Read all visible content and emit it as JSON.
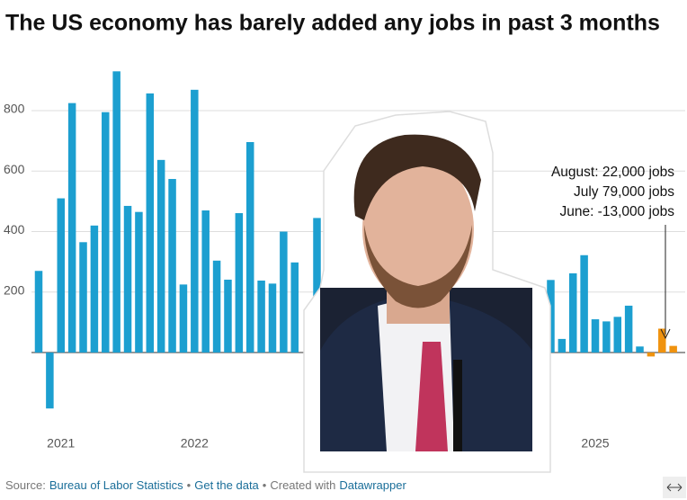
{
  "chart_data": {
    "type": "bar",
    "title": "The US economy has barely added any jobs in past 3 months",
    "categories": [
      null,
      null,
      "2021",
      null,
      null,
      null,
      null,
      null,
      null,
      null,
      null,
      null,
      null,
      null,
      "2022",
      null,
      null,
      null,
      null,
      null,
      null,
      null,
      null,
      null,
      null,
      null,
      null,
      null,
      null,
      null,
      null,
      null,
      null,
      null,
      null,
      null,
      null,
      null,
      null,
      null,
      null,
      null,
      null,
      null,
      null,
      null,
      null,
      null,
      null,
      null,
      "2025",
      null,
      null,
      null,
      null,
      null,
      null,
      null
    ],
    "values": [
      270,
      -185,
      510,
      825,
      365,
      420,
      795,
      930,
      485,
      465,
      857,
      637,
      574,
      225,
      869,
      470,
      304,
      241,
      461,
      696,
      238,
      228,
      400,
      298,
      null,
      445,
      307,
      null,
      null,
      null,
      null,
      null,
      null,
      null,
      null,
      null,
      null,
      null,
      null,
      null,
      null,
      null,
      null,
      null,
      null,
      null,
      240,
      45,
      262,
      322,
      110,
      103,
      118,
      155,
      20,
      -13,
      79,
      22
    ],
    "color": "#1c9fd0",
    "highlight_color": "#f0930f",
    "highlight_count": 3,
    "ylim": [
      -220,
      950
    ],
    "yticks": [
      200,
      400,
      600,
      800
    ],
    "grid": true,
    "annotation": [
      "August: 22,000 jobs",
      "July 79,000 jobs",
      "June: -13,000 jobs"
    ],
    "footer": {
      "source_label": "Source:",
      "source": "Bureau of Labor Statistics",
      "separator": "•",
      "data_link": "Get the data",
      "credit": "Created with",
      "credit_link": "Datawrapper"
    }
  }
}
